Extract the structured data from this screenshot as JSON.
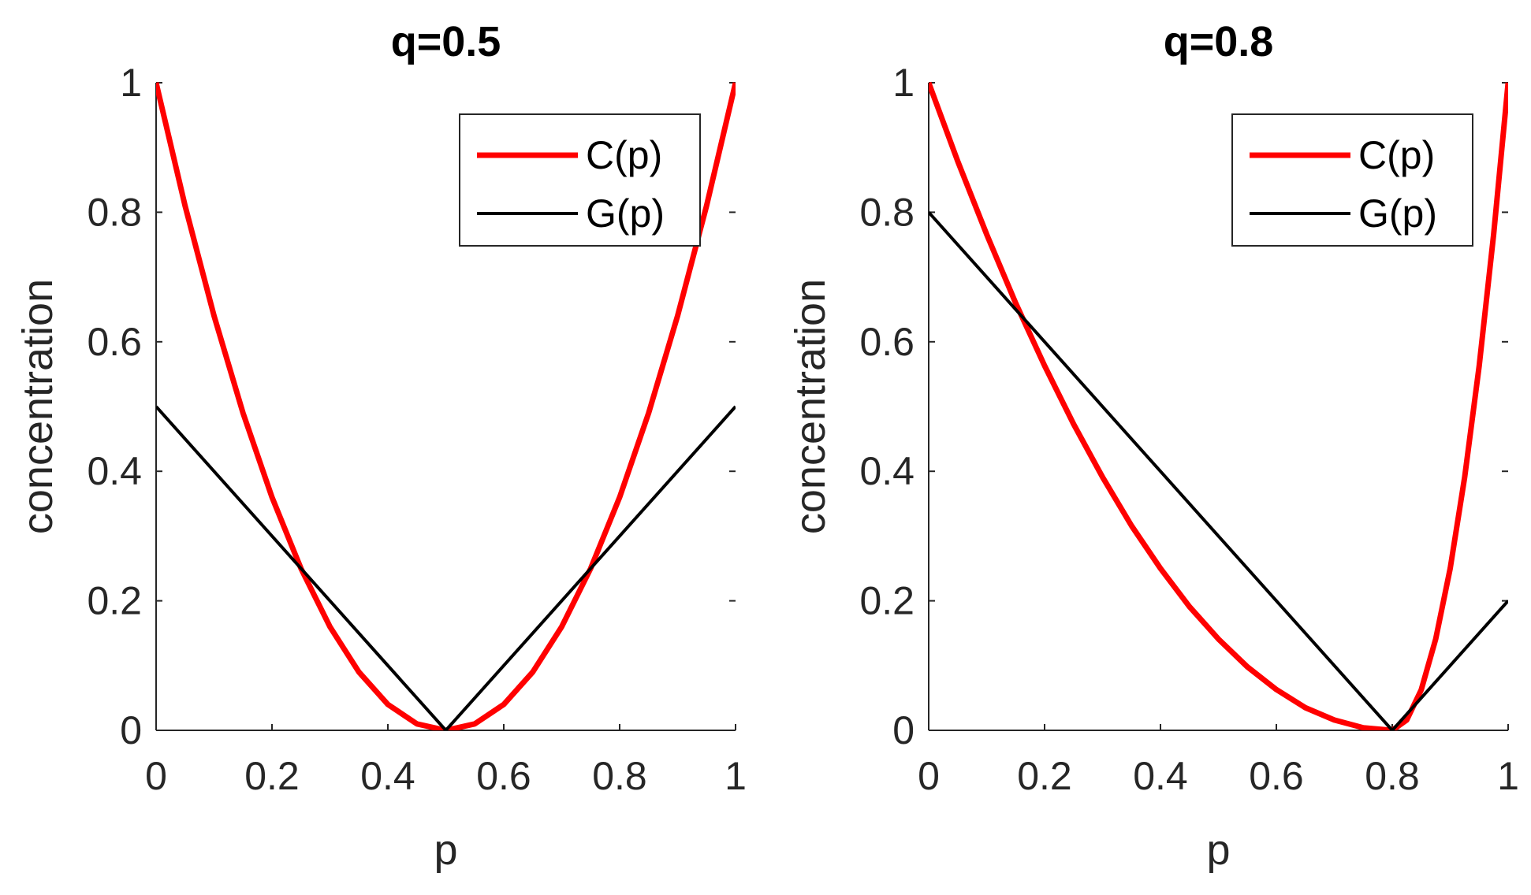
{
  "chart_data": [
    {
      "type": "line",
      "title": "q=0.5",
      "q": 0.5,
      "xlabel": "p",
      "ylabel": "concentration",
      "xlim": [
        0,
        1
      ],
      "ylim": [
        0,
        1
      ],
      "xticks": [
        "0",
        "0.2",
        "0.4",
        "0.6",
        "0.8",
        "1"
      ],
      "yticks": [
        "0",
        "0.2",
        "0.4",
        "0.6",
        "0.8",
        "1"
      ],
      "legend": {
        "location": "top-right",
        "entries": [
          "C(p)",
          "G(p)"
        ]
      },
      "series": [
        {
          "name": "C(p)",
          "color": "#ff0000",
          "x": [
            0,
            0.05,
            0.1,
            0.15,
            0.2,
            0.25,
            0.3,
            0.35,
            0.4,
            0.45,
            0.5,
            0.55,
            0.6,
            0.65,
            0.7,
            0.75,
            0.8,
            0.85,
            0.9,
            0.95,
            1
          ],
          "y": [
            1.0,
            0.81,
            0.64,
            0.49,
            0.36,
            0.25,
            0.16,
            0.09,
            0.04,
            0.01,
            0.0,
            0.01,
            0.04,
            0.09,
            0.16,
            0.25,
            0.36,
            0.49,
            0.64,
            0.81,
            1.0
          ]
        },
        {
          "name": "G(p)",
          "color": "#000000",
          "x": [
            0,
            0.5,
            1
          ],
          "y": [
            0.5,
            0.0,
            0.5
          ]
        }
      ]
    },
    {
      "type": "line",
      "title": "q=0.8",
      "q": 0.8,
      "xlabel": "p",
      "ylabel": "concentration",
      "xlim": [
        0,
        1
      ],
      "ylim": [
        0,
        1
      ],
      "xticks": [
        "0",
        "0.2",
        "0.4",
        "0.6",
        "0.8",
        "1"
      ],
      "yticks": [
        "0",
        "0.2",
        "0.4",
        "0.6",
        "0.8",
        "1"
      ],
      "legend": {
        "location": "top-right",
        "entries": [
          "C(p)",
          "G(p)"
        ]
      },
      "series": [
        {
          "name": "C(p)",
          "color": "#ff0000",
          "x": [
            0,
            0.05,
            0.1,
            0.15,
            0.2,
            0.25,
            0.3,
            0.35,
            0.4,
            0.45,
            0.5,
            0.55,
            0.6,
            0.65,
            0.7,
            0.75,
            0.8,
            0.825,
            0.85,
            0.875,
            0.9,
            0.925,
            0.95,
            0.975,
            1
          ],
          "y": [
            1.0,
            0.879,
            0.766,
            0.66,
            0.563,
            0.473,
            0.391,
            0.316,
            0.25,
            0.191,
            0.141,
            0.098,
            0.063,
            0.035,
            0.016,
            0.004,
            0.0,
            0.016,
            0.0625,
            0.141,
            0.25,
            0.391,
            0.5625,
            0.766,
            1.0
          ]
        },
        {
          "name": "G(p)",
          "color": "#000000",
          "x": [
            0,
            0.8,
            1
          ],
          "y": [
            0.8,
            0.0,
            0.2
          ]
        }
      ]
    }
  ]
}
